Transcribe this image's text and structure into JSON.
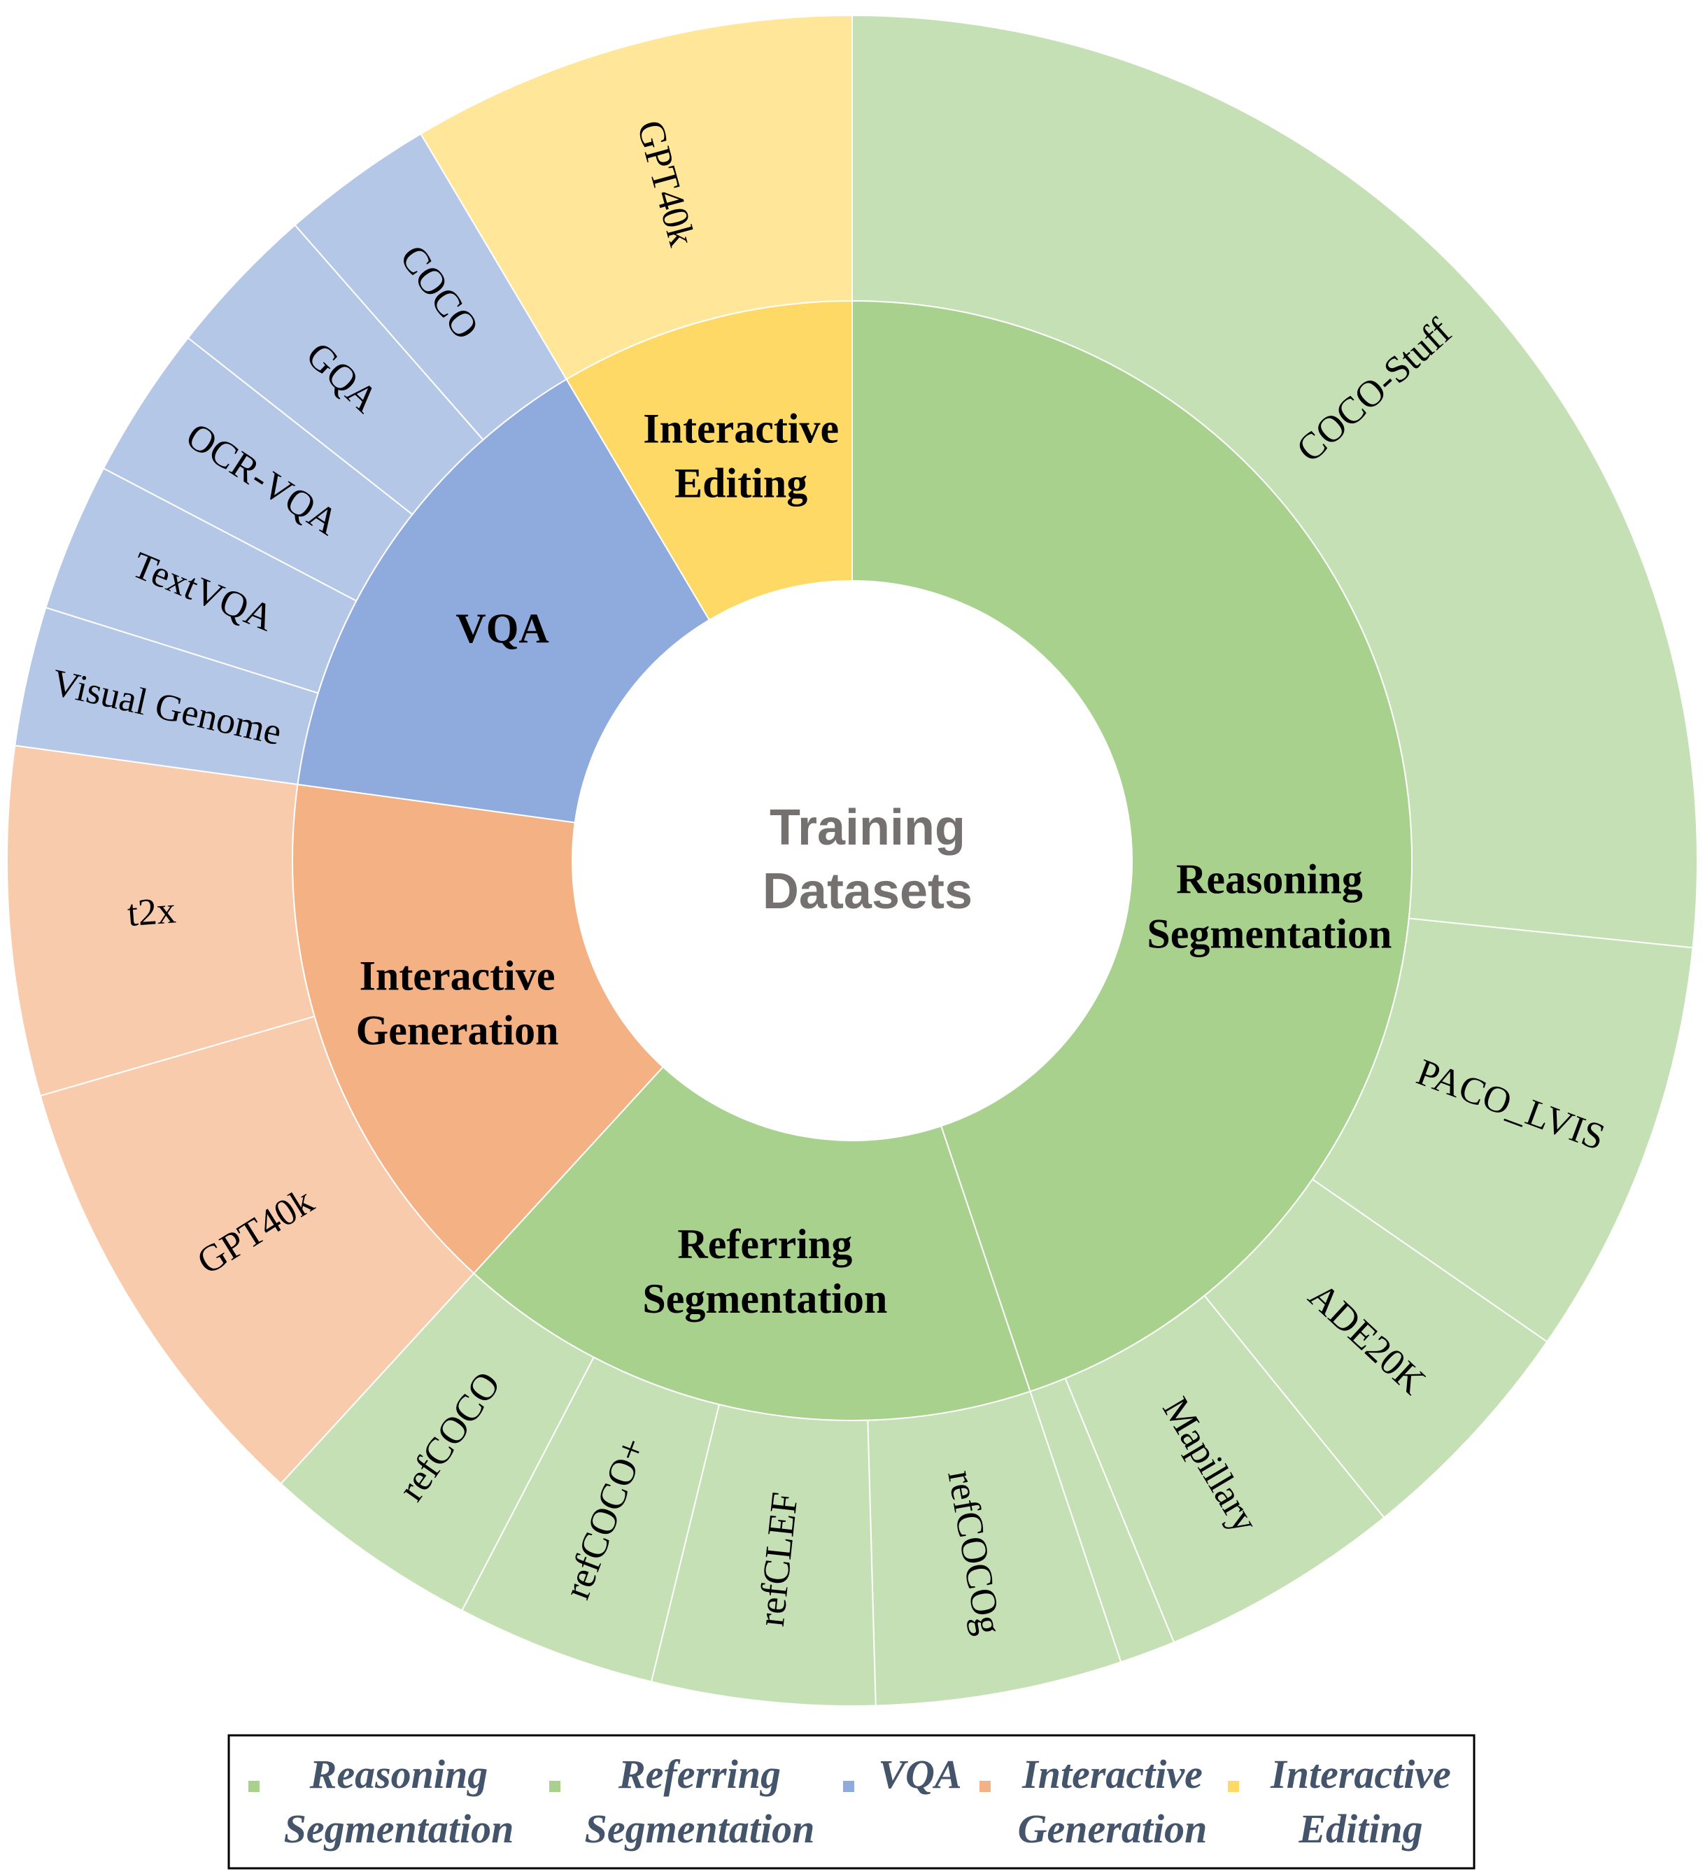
{
  "chart_data": {
    "type": "sunburst",
    "center_label": [
      "Training",
      "Datasets"
    ],
    "categories": [
      {
        "name": "Reasoning Segmentation",
        "label_lines": [
          "Reasoning",
          "Segmentation"
        ],
        "color": "#a9d18e",
        "outer_color": "#c5e0b4",
        "children": [
          {
            "name": "COCO-Stuff",
            "value": 30.0
          },
          {
            "name": "PACO_LVIS",
            "value": 9.0
          },
          {
            "name": "ADE20K",
            "value": 5.1
          },
          {
            "name": "Mapillary",
            "value": 5.2
          },
          {
            "name": "",
            "value": 1.2
          }
        ]
      },
      {
        "name": "Referring Segmentation",
        "label_lines": [
          "Referring",
          "Segmentation"
        ],
        "color": "#a9d18e",
        "outer_color": "#c5e0b4",
        "children": [
          {
            "name": "refCOCOg",
            "value": 5.3
          },
          {
            "name": "refCLEF",
            "value": 4.8
          },
          {
            "name": "refCOCO+",
            "value": 4.3
          },
          {
            "name": "refCOCO",
            "value": 4.7
          }
        ]
      },
      {
        "name": "Interactive Generation",
        "label_lines": [
          "Interactive",
          "Generation"
        ],
        "color": "#f4b183",
        "outer_color": "#f8cbad",
        "children": [
          {
            "name": "GPT40k",
            "value": 9.8
          },
          {
            "name": "t2x",
            "value": 7.5
          }
        ]
      },
      {
        "name": "VQA",
        "label_lines": [
          "VQA"
        ],
        "color": "#8faadc",
        "outer_color": "#b4c7e7",
        "children": [
          {
            "name": "Visual Genome",
            "value": 3.0
          },
          {
            "name": "TextVQA",
            "value": 3.2
          },
          {
            "name": "OCR-VQA",
            "value": 3.3
          },
          {
            "name": "GQA",
            "value": 3.3
          },
          {
            "name": "COCO",
            "value": 3.3
          }
        ]
      },
      {
        "name": "Interactive Editing",
        "label_lines": [
          "Interactive",
          "Editing"
        ],
        "color": "#ffd966",
        "outer_color": "#ffe699",
        "children": [
          {
            "name": "GPT40k",
            "value": 9.6
          }
        ]
      }
    ],
    "legend": {
      "position": "bottom",
      "items": [
        {
          "lines": [
            "Reasoning",
            "Segmentation"
          ],
          "color": "#a9d18e"
        },
        {
          "lines": [
            "Referring",
            "Segmentation"
          ],
          "color": "#a9d18e"
        },
        {
          "lines": [
            "VQA"
          ],
          "color": "#8faadc"
        },
        {
          "lines": [
            "Interactive",
            "Generation"
          ],
          "color": "#f4b183"
        },
        {
          "lines": [
            "Interactive",
            "Editing"
          ],
          "color": "#ffd966"
        }
      ]
    }
  }
}
